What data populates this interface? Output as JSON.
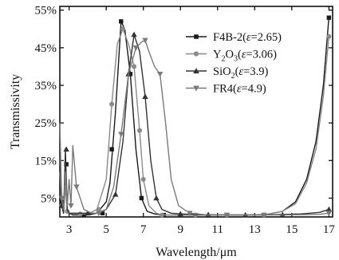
{
  "chart_data": {
    "type": "line",
    "xlabel": "Wavelength/μm",
    "ylabel": "Transmissivity",
    "xlim": [
      2.5,
      17.2
    ],
    "ylim": [
      0,
      56
    ],
    "x_ticks": [
      3,
      5,
      7,
      9,
      11,
      13,
      15,
      17
    ],
    "x_tick_labels": [
      "3",
      "5",
      "7",
      "9",
      "11",
      "13",
      "15",
      "17"
    ],
    "y_ticks": [
      5,
      15,
      25,
      35,
      45,
      55
    ],
    "y_tick_labels": [
      "5%",
      "15%",
      "25%",
      "35%",
      "45%",
      "55%"
    ],
    "grid": false,
    "legend_position": "top-right",
    "series": [
      {
        "name": "F4B-2(ε=2.65)",
        "legend_parts": [
          "F4B-2(",
          "ε",
          "=2.65)"
        ],
        "color": "#1a1a1a",
        "marker": "square",
        "x": [
          2.5,
          2.6,
          2.7,
          2.8,
          2.9,
          3.0,
          3.2,
          3.6,
          4.0,
          4.5,
          5.0,
          5.2,
          5.5,
          5.8,
          6.0,
          6.3,
          6.6,
          6.9,
          7.2,
          7.6,
          8.0,
          9.0,
          10.0,
          11.5,
          13.5,
          14.5,
          15.2,
          15.8,
          16.3,
          16.7,
          17.0
        ],
        "y": [
          20.0,
          4.0,
          1.0,
          14.0,
          2.0,
          1.0,
          0.5,
          0.5,
          0.5,
          1.0,
          4.0,
          9.0,
          28.0,
          52.0,
          50.0,
          38.0,
          18.0,
          5.0,
          1.5,
          0.8,
          0.5,
          0.5,
          0.5,
          0.5,
          0.5,
          1.5,
          4.0,
          10.0,
          20.0,
          35.0,
          53.0
        ],
        "marker_x": [
          2.6,
          2.85,
          3.8,
          4.8,
          5.3,
          5.8,
          6.3,
          6.9,
          8.1,
          9.8,
          11.5,
          13.5,
          17.0
        ],
        "marker_y": [
          4.0,
          14.0,
          0.5,
          1.0,
          18.0,
          52.0,
          38.0,
          5.0,
          0.5,
          0.5,
          0.5,
          0.5,
          53.0
        ]
      },
      {
        "name": "Y2O3(ε=3.06)",
        "legend_parts": [
          "Y",
          "2",
          "O",
          "3",
          "(",
          "ε",
          "=3.06)"
        ],
        "color": "#8a8a8a",
        "marker": "circle",
        "x": [
          2.5,
          2.6,
          2.7,
          2.8,
          2.9,
          3.0,
          3.2,
          3.6,
          4.0,
          4.5,
          5.0,
          5.3,
          5.6,
          5.9,
          6.2,
          6.5,
          6.8,
          7.0,
          7.3,
          7.7,
          8.0,
          9.0,
          10.0,
          11.5,
          13.5,
          14.5,
          15.2,
          15.8,
          16.3,
          16.7,
          17.0
        ],
        "y": [
          12.0,
          3.0,
          1.0,
          8.0,
          1.5,
          1.0,
          0.8,
          0.8,
          0.8,
          2.0,
          10.0,
          30.0,
          46.0,
          50.0,
          46.0,
          40.0,
          23.0,
          10.0,
          3.0,
          1.0,
          0.5,
          0.5,
          0.5,
          0.5,
          0.5,
          1.5,
          3.5,
          9.0,
          18.0,
          32.0,
          48.0
        ],
        "marker_x": [
          2.6,
          2.9,
          3.6,
          4.6,
          5.3,
          5.9,
          6.5,
          6.8,
          7.0,
          8.0,
          9.8,
          11.5,
          13.5,
          17.0
        ],
        "marker_y": [
          3.0,
          1.5,
          0.8,
          2.0,
          30.0,
          50.0,
          40.0,
          23.0,
          10.0,
          0.5,
          0.5,
          0.5,
          0.5,
          48.0
        ]
      },
      {
        "name": "SiO2(ε=3.9)",
        "legend_parts": [
          "SiO",
          "2",
          "(",
          "ε",
          "=3.9)"
        ],
        "color": "#333333",
        "marker": "triangle-up",
        "x": [
          2.5,
          2.6,
          2.7,
          2.8,
          2.9,
          3.0,
          3.2,
          3.6,
          4.0,
          4.5,
          5.0,
          5.5,
          5.9,
          6.2,
          6.5,
          6.8,
          7.1,
          7.4,
          7.7,
          8.0,
          8.5,
          9.0,
          10.0,
          12.0,
          14.0,
          15.5,
          16.5,
          17.0
        ],
        "y": [
          16.0,
          3.0,
          1.0,
          18.0,
          2.0,
          1.0,
          1.0,
          1.0,
          1.0,
          1.0,
          2.0,
          6.0,
          20.0,
          38.0,
          48.5,
          44.0,
          32.0,
          15.0,
          5.0,
          2.0,
          1.0,
          0.8,
          0.6,
          0.5,
          0.6,
          0.8,
          1.2,
          2.0
        ],
        "marker_x": [
          2.6,
          2.85,
          4.0,
          5.5,
          6.2,
          6.5,
          7.1,
          7.7,
          9.0,
          10.5,
          12.5,
          14.5,
          17.0
        ],
        "marker_y": [
          3.0,
          18.0,
          1.0,
          6.0,
          38.0,
          48.5,
          32.0,
          5.0,
          0.8,
          0.6,
          0.5,
          0.6,
          2.0
        ]
      },
      {
        "name": "FR4(ε=4.9)",
        "legend_parts": [
          "FR4(",
          "ε",
          "=4.9)"
        ],
        "color": "#7a7a7a",
        "marker": "triangle-down",
        "x": [
          2.5,
          2.6,
          2.7,
          2.8,
          2.9,
          3.0,
          3.1,
          3.2,
          3.4,
          3.8,
          4.2,
          4.6,
          5.0,
          5.4,
          5.8,
          6.2,
          6.6,
          6.9,
          7.1,
          7.3,
          7.6,
          7.9,
          8.2,
          8.5,
          8.9,
          9.5,
          10.5,
          12.0,
          14.0,
          15.5,
          16.5,
          17.0
        ],
        "y": [
          25.0,
          5.0,
          2.0,
          12.0,
          3.0,
          10.0,
          3.0,
          19.0,
          8.0,
          2.0,
          1.0,
          1.0,
          2.0,
          8.0,
          22.0,
          38.0,
          45.0,
          46.5,
          47.0,
          44.0,
          40.0,
          38.0,
          25.0,
          10.0,
          3.0,
          1.0,
          0.5,
          0.5,
          0.5,
          0.6,
          0.7,
          1.0
        ],
        "marker_x": [
          2.6,
          3.1,
          3.4,
          4.6,
          5.8,
          6.6,
          7.1,
          7.9,
          9.5,
          11.5,
          13.5,
          17.0
        ],
        "marker_y": [
          5.0,
          3.0,
          8.0,
          1.0,
          22.0,
          45.0,
          47.0,
          38.0,
          1.0,
          0.5,
          0.5,
          1.0
        ]
      }
    ]
  }
}
